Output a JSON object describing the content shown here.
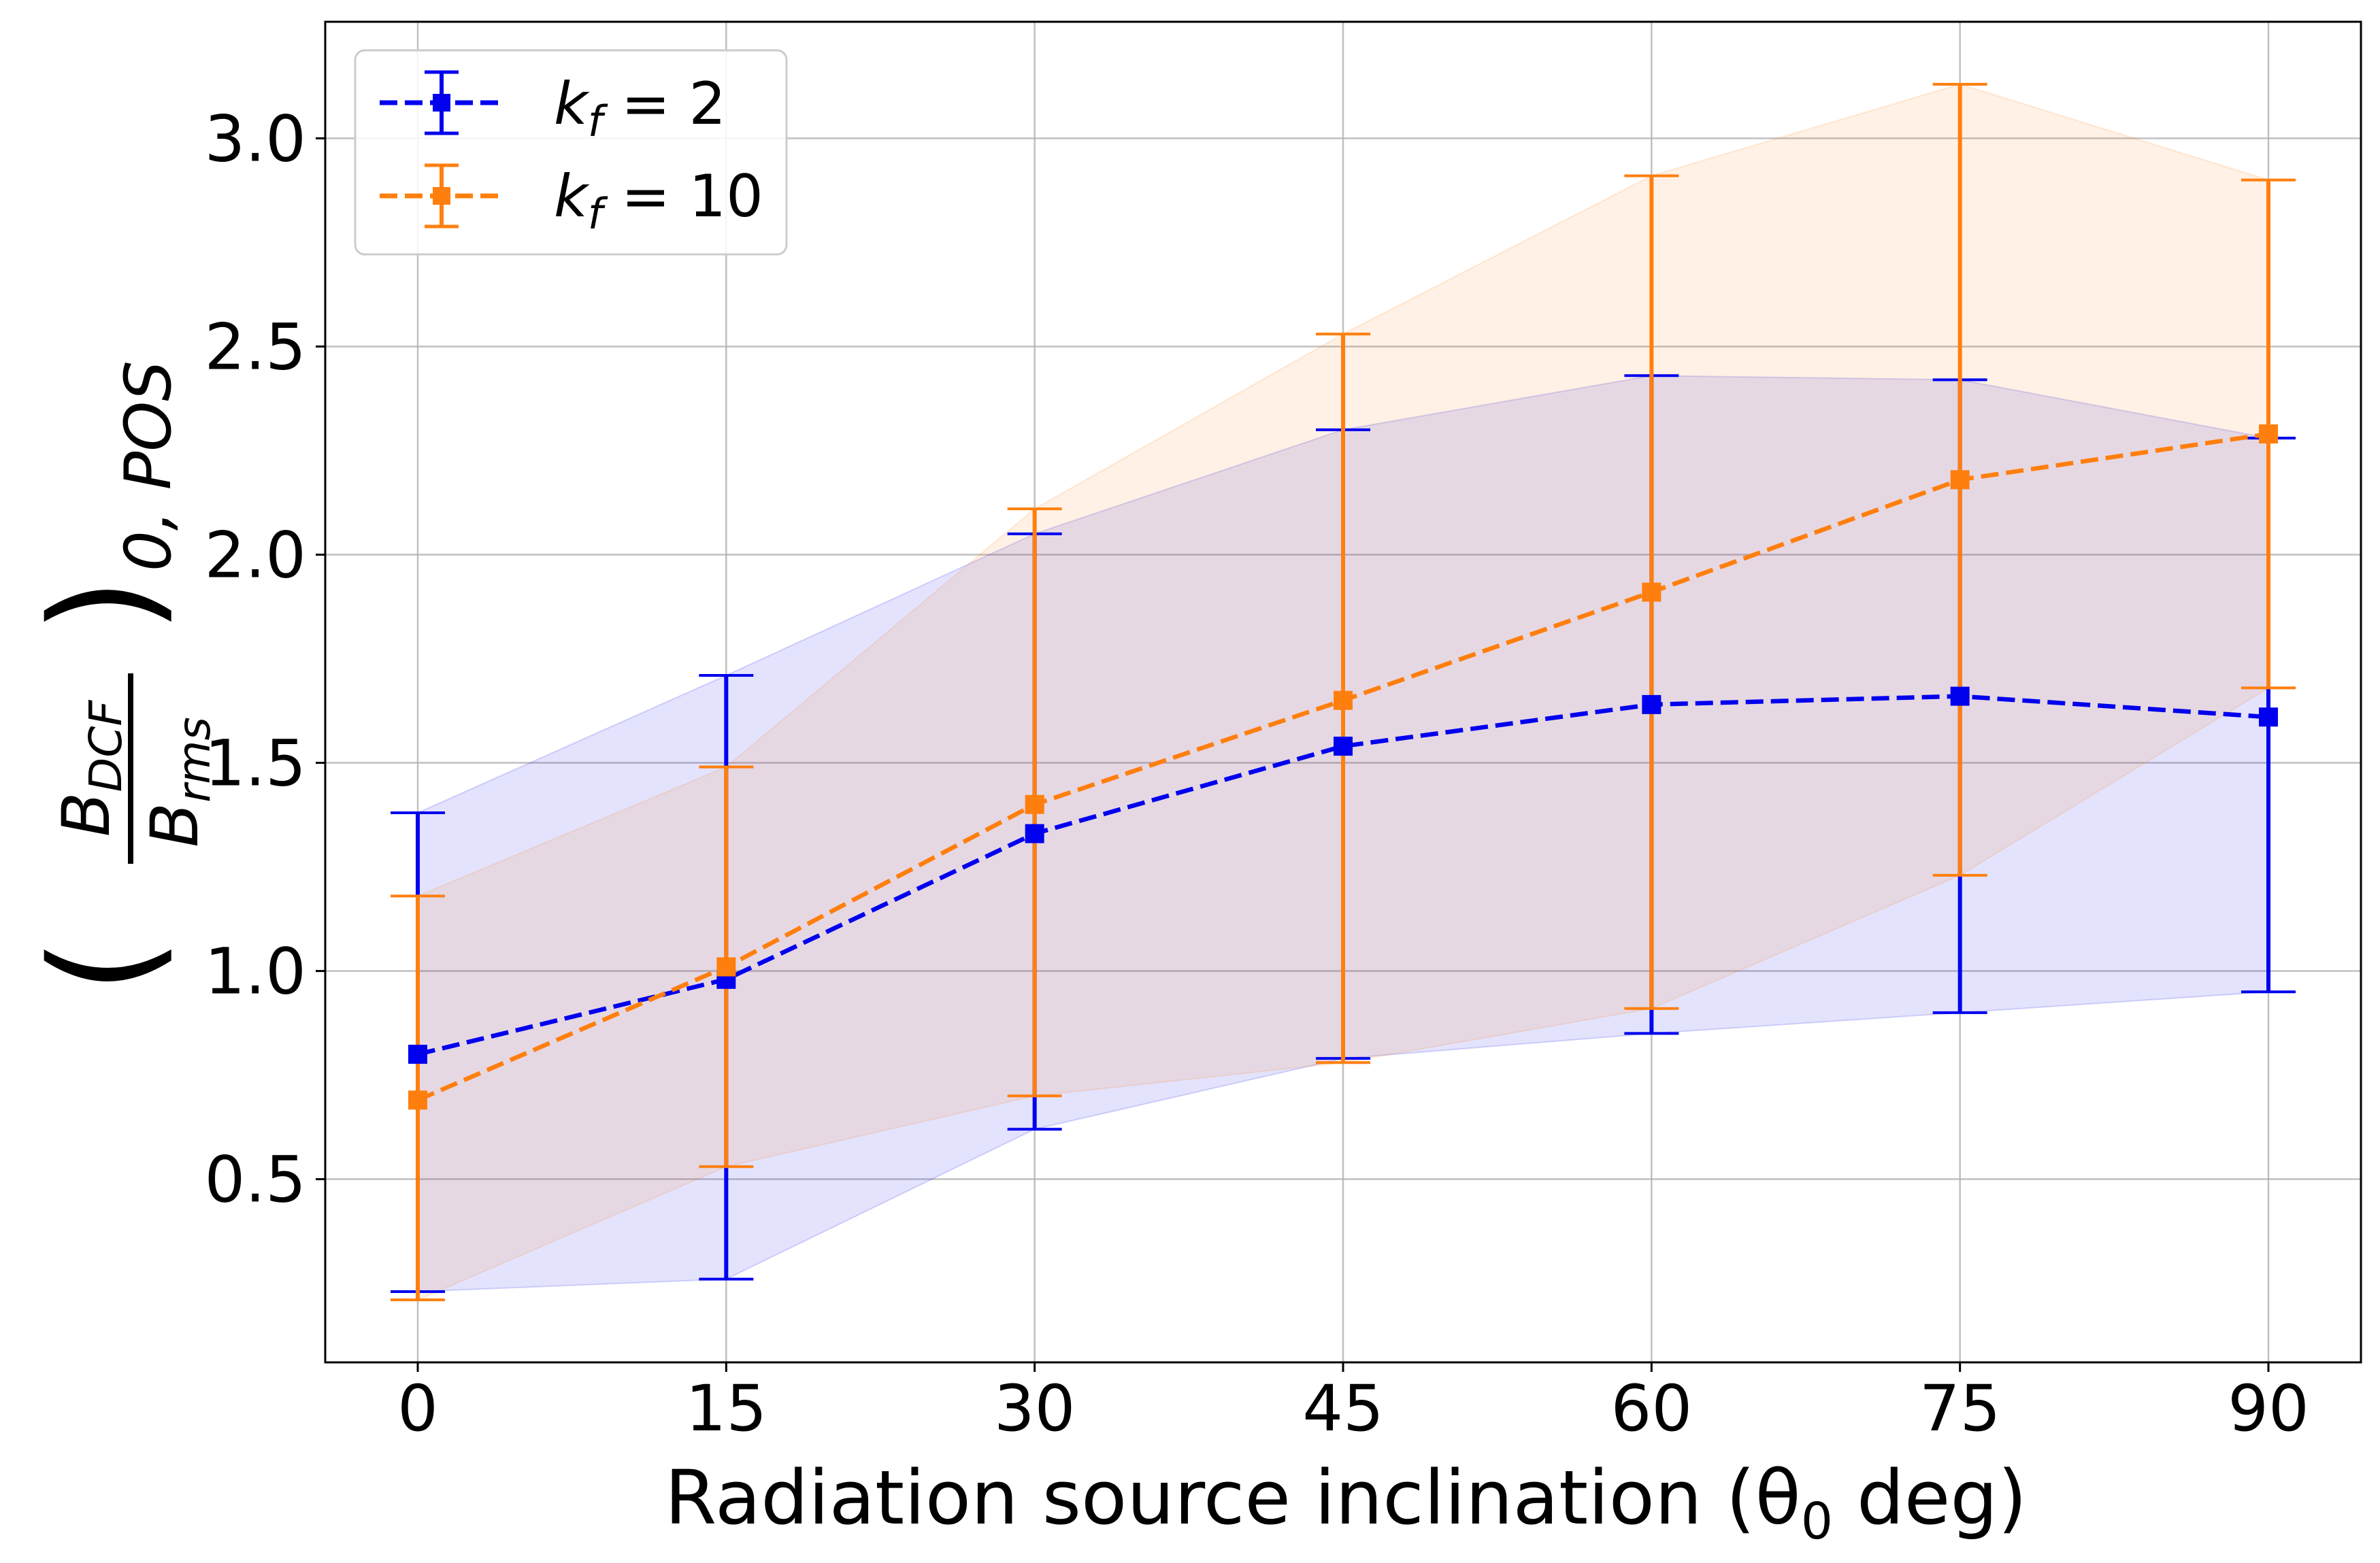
{
  "chart_data": {
    "type": "line",
    "xlabel": "Radiation source inclination (θ",
    "xlabel_sub": "0",
    "xlabel_suffix": " deg)",
    "ylabel": {
      "numerator": "B",
      "numerator_sub": "DCF",
      "denominator": "B",
      "denominator_sub": "rms",
      "outer_sub": "0, POS"
    },
    "x": [
      0,
      15,
      30,
      45,
      60,
      75,
      90
    ],
    "xticks": [
      "0",
      "15",
      "30",
      "45",
      "60",
      "75",
      "90"
    ],
    "yticks": [
      "0.5",
      "1.0",
      "1.5",
      "2.0",
      "2.5",
      "3.0"
    ],
    "xlim": [
      -4.5,
      94.5
    ],
    "ylim": [
      0.06,
      3.28
    ],
    "grid": true,
    "legend_position": "top-left",
    "series": [
      {
        "name": "k",
        "name_sub": "f",
        "name_suffix": " = 2",
        "color": "#0000ee",
        "values": [
          0.8,
          0.98,
          1.33,
          1.54,
          1.64,
          1.66,
          1.61
        ],
        "err_low": [
          0.23,
          0.26,
          0.62,
          0.79,
          0.85,
          0.9,
          0.95
        ],
        "err_high": [
          1.38,
          1.71,
          2.05,
          2.3,
          2.43,
          2.42,
          2.28
        ]
      },
      {
        "name": "k",
        "name_sub": "f",
        "name_suffix": " = 10",
        "color": "#ff7f0e",
        "values": [
          0.69,
          1.01,
          1.4,
          1.65,
          1.91,
          2.18,
          2.29
        ],
        "err_low": [
          0.21,
          0.53,
          0.7,
          0.78,
          0.91,
          1.23,
          1.68
        ],
        "err_high": [
          1.18,
          1.49,
          2.11,
          2.53,
          2.91,
          3.13,
          2.9
        ]
      }
    ]
  }
}
